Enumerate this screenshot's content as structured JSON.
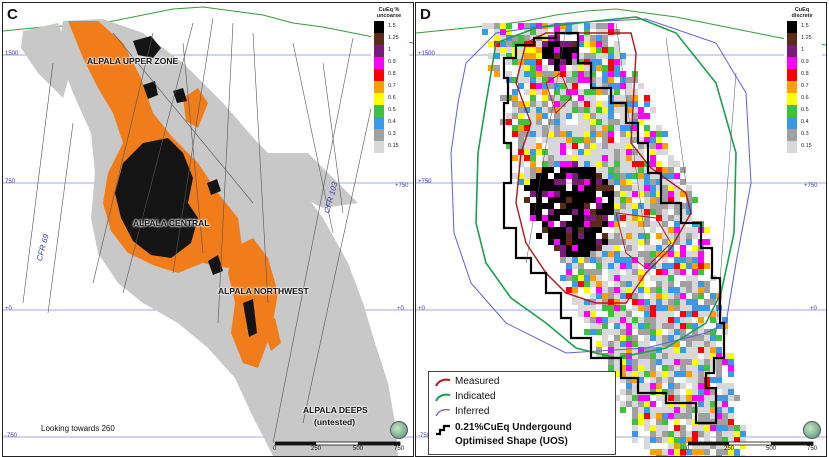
{
  "panel_c": {
    "letter": "C",
    "legend_title": "CuEq % uncoarse",
    "legend_ticks": [
      "1.5",
      "1.25",
      "1",
      "0.9",
      "0.8",
      "0.7",
      "0.6",
      "0.5",
      "0.4",
      "0.3",
      "0.15"
    ],
    "zones": {
      "upper": "ALPALA UPPER ZONE",
      "central": "ALPALA CENTRAL",
      "northwest": "ALPALA NORTHWEST",
      "deeps": "ALPALA DEEPS",
      "deeps_note": "(untested)"
    },
    "drill_holes": {
      "cfr69": "CFR 69",
      "cfr103": "CFR 103"
    },
    "looking": "Looking towards 260",
    "grid_labels": {
      "l1500": "1500",
      "l750": "750",
      "l0": "+0",
      "lm750": "-750",
      "r1500": "+1500",
      "r750": "+750",
      "r0": "+0"
    },
    "scale_ticks": [
      "0",
      "250",
      "500",
      "750"
    ]
  },
  "panel_d": {
    "letter": "D",
    "legend_title": "CuEq discrete",
    "legend_ticks": [
      "1.5",
      "1.25",
      "1",
      "0.9",
      "0.8",
      "0.7",
      "0.6",
      "0.5",
      "0.4",
      "0.3",
      "0.15"
    ],
    "legend": {
      "measured": "Measured",
      "indicated": "Indicated",
      "inferred": "Inferred",
      "uos_line1": "0.21%CuEq Undergound",
      "uos_line2": "Optimised Shape (UOS)"
    },
    "grid_labels": {
      "l1500": "+1500",
      "l750": "+750",
      "l0": "+0",
      "lm750": "-750",
      "r1500": "+1500",
      "r750": "+750",
      "r0": "+0"
    },
    "scale_ticks": [
      "0",
      "250",
      "500",
      "750"
    ]
  },
  "colors": {
    "orange": "#f07d1a",
    "black": "#141414",
    "grey": "#c8c8c8",
    "measured": "#b01818",
    "indicated": "#1aa050",
    "inferred": "#6060d8",
    "uos": "#000000",
    "grid": "#8a8ad8",
    "topo": "#3a9a3a"
  },
  "color_scale": [
    "#000000",
    "#5a2a1a",
    "#7a1a7a",
    "#ff00ff",
    "#ff0000",
    "#ffa000",
    "#ffff00",
    "#40c040",
    "#3a9ae8",
    "#a0a0a0",
    "#d8d8d8"
  ]
}
